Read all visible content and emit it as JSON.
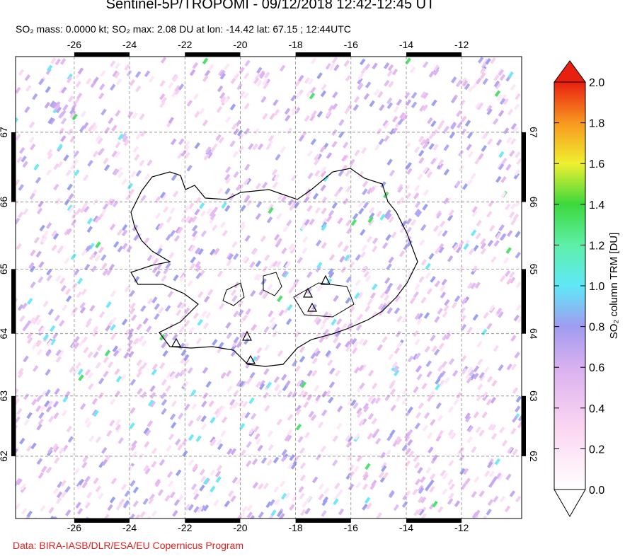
{
  "header": {
    "title": "Sentinel-5P/TROPOMI - 09/12/2018 12:42-12:45 UT",
    "subtitle": "SO₂ mass: 0.0000 kt; SO₂ max: 2.08 DU at lon: -14.42 lat: 67.15 ; 12:44UTC"
  },
  "map": {
    "xlim": [
      -28.12,
      -9.83
    ],
    "ylim": [
      60.93,
      68.04
    ],
    "xticks": [
      -26,
      -24,
      -22,
      -20,
      -18,
      -16,
      -14,
      -12
    ],
    "yticks": [
      67,
      66,
      65,
      64,
      63,
      62
    ]
  },
  "colorbar": {
    "label": "SO₂ column TRM [DU]",
    "lim": [
      0,
      2
    ],
    "ticks": [
      {
        "value": 0,
        "label": "0.0"
      },
      0.2,
      0.4,
      0.6,
      0.8,
      {
        "value": 1,
        "label": "1.0"
      },
      1.2,
      1.4,
      1.6,
      1.8,
      {
        "value": 2,
        "label": "2.0"
      }
    ]
  },
  "footer": {
    "credit": "Data: BIRA-IASB/DLR/ESA/EU Copernicus Program"
  }
}
